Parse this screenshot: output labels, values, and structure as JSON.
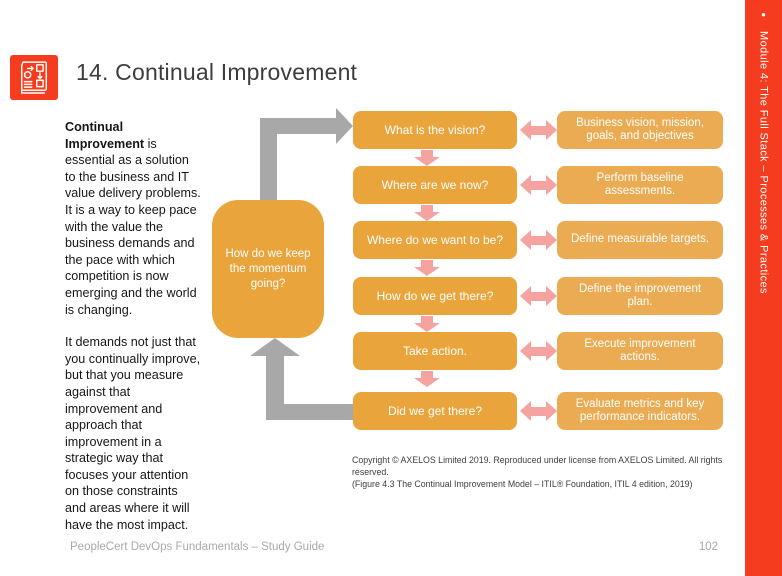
{
  "page": {
    "title": "14. Continual Improvement",
    "icon": "process-document-icon",
    "footer": {
      "left": "PeopleCert DevOps Fundamentals  – Study Guide",
      "page_number": "102"
    },
    "sidebar": {
      "bullet": "•",
      "label": "Module 4: The Full Stack – Processes & Practices",
      "color": "#f53c1e"
    }
  },
  "intro": {
    "p1": {
      "bold_line1": "Continual",
      "bold_line2": "Improvement",
      "rest_line2": " is",
      "lines": [
        "essential as a solution",
        "to the business and IT",
        "value delivery problems.",
        "It is a way to keep pace",
        "with the value the",
        "business demands and",
        "the pace with which",
        "competition is now",
        "emerging and the world",
        "is changing."
      ]
    },
    "p2": {
      "lines": [
        "It demands not just that",
        "you continually improve,",
        "but that you measure",
        "against that",
        "improvement and",
        "approach that",
        "improvement in a",
        "strategic way that",
        "focuses your attention",
        "on those constraints",
        "and areas where it will",
        "have the most impact."
      ]
    }
  },
  "diagram": {
    "momentum_box": "How do we keep the momentum going?",
    "rows": [
      {
        "question": "What is the vision?",
        "outcome": "Business vision, mission, goals, and objectives"
      },
      {
        "question": "Where are we now?",
        "outcome": "Perform baseline assessments."
      },
      {
        "question": "Where do we want to be?",
        "outcome": "Define measurable targets."
      },
      {
        "question": "How do we get there?",
        "outcome": "Define the improvement plan."
      },
      {
        "question": "Take action.",
        "outcome": "Execute improvement actions."
      },
      {
        "question": "Did we get there?",
        "outcome": "Evaluate metrics and key performance indicators."
      }
    ],
    "copyright_line1": "Copyright © AXELOS Limited 2019. Reproduced under license from AXELOS Limited. All rights reserved.",
    "copyright_line2": "(Figure 4.3 The Continual Improvement Model – ITIL® Foundation, ITIL 4 edition, 2019)",
    "colors": {
      "question_box": "#e9a43c",
      "outcome_box": "#ebab52",
      "pink_arrow": "#f5a3a1",
      "gray_arrow": "#a8a8a8"
    }
  }
}
